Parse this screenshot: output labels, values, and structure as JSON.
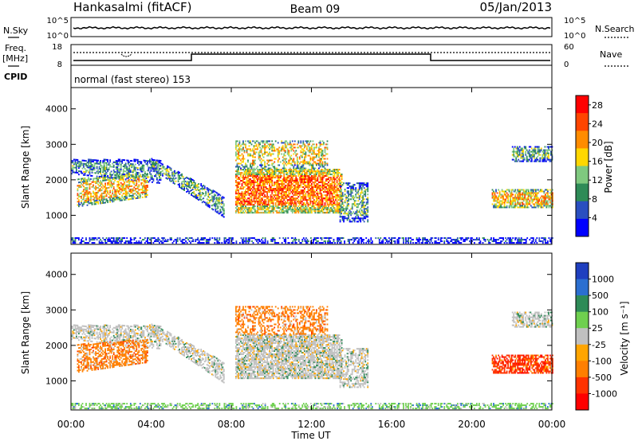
{
  "header": {
    "station": "Hankasalmi (fitACF)",
    "beam": "Beam 09",
    "date": "05/Jan/2013"
  },
  "noise_panel": {
    "left_label": "N.Sky",
    "right_label": "N.Search",
    "left_ticks": [
      "10^5",
      "10^0"
    ],
    "right_ticks": [
      "10^5",
      "10^0"
    ]
  },
  "freq_panel": {
    "left_label_line1": "Freq.",
    "left_label_line2": "[MHz]",
    "right_label": "Nave",
    "left_ticks": [
      "18",
      "8"
    ],
    "right_ticks": [
      "60",
      "0"
    ],
    "cpid_label": "CPID"
  },
  "cpid_panel": {
    "mode_text": "normal (fast stereo) 153"
  },
  "colors": {
    "power_scale": [
      "#0000ff",
      "#2a4fc0",
      "#2e8b57",
      "#7fc97f",
      "#ffd700",
      "#ff8c00",
      "#ff4500",
      "#ff0000"
    ],
    "velocity_scale": [
      "#1f3fbf",
      "#2b6fd0",
      "#2e8b57",
      "#6fd04f",
      "#c0c0c0",
      "#ffa500",
      "#ff7f00",
      "#ff3300",
      "#ff0000"
    ]
  },
  "chart_data": [
    {
      "type": "heatmap",
      "title": "Power",
      "xlabel": "Time UT",
      "ylabel": "Slant Range [km]",
      "xlim": [
        0,
        24
      ],
      "ylim": [
        180,
        4600
      ],
      "x_ticks": [
        "00:00",
        "04:00",
        "08:00",
        "12:00",
        "16:00",
        "20:00",
        "00:00"
      ],
      "y_ticks": [
        1000,
        2000,
        3000,
        4000
      ],
      "colorbar": {
        "label": "Power [dB]",
        "ticks": [
          "4",
          "8",
          "12",
          "16",
          "20",
          "24",
          "28"
        ],
        "range": [
          0,
          30
        ]
      }
    },
    {
      "type": "heatmap",
      "title": "Velocity",
      "xlabel": "Time UT",
      "ylabel": "Slant Range [km]",
      "xlim": [
        0,
        24
      ],
      "ylim": [
        180,
        4600
      ],
      "x_ticks": [
        "00:00",
        "04:00",
        "08:00",
        "12:00",
        "16:00",
        "20:00",
        "00:00"
      ],
      "y_ticks": [
        1000,
        2000,
        3000,
        4000
      ],
      "colorbar": {
        "label": "Velocity [m s⁻¹]",
        "ticks": [
          "1000",
          "500",
          "100",
          "25",
          "-25",
          "-100",
          "-500",
          "-1000"
        ]
      }
    }
  ]
}
